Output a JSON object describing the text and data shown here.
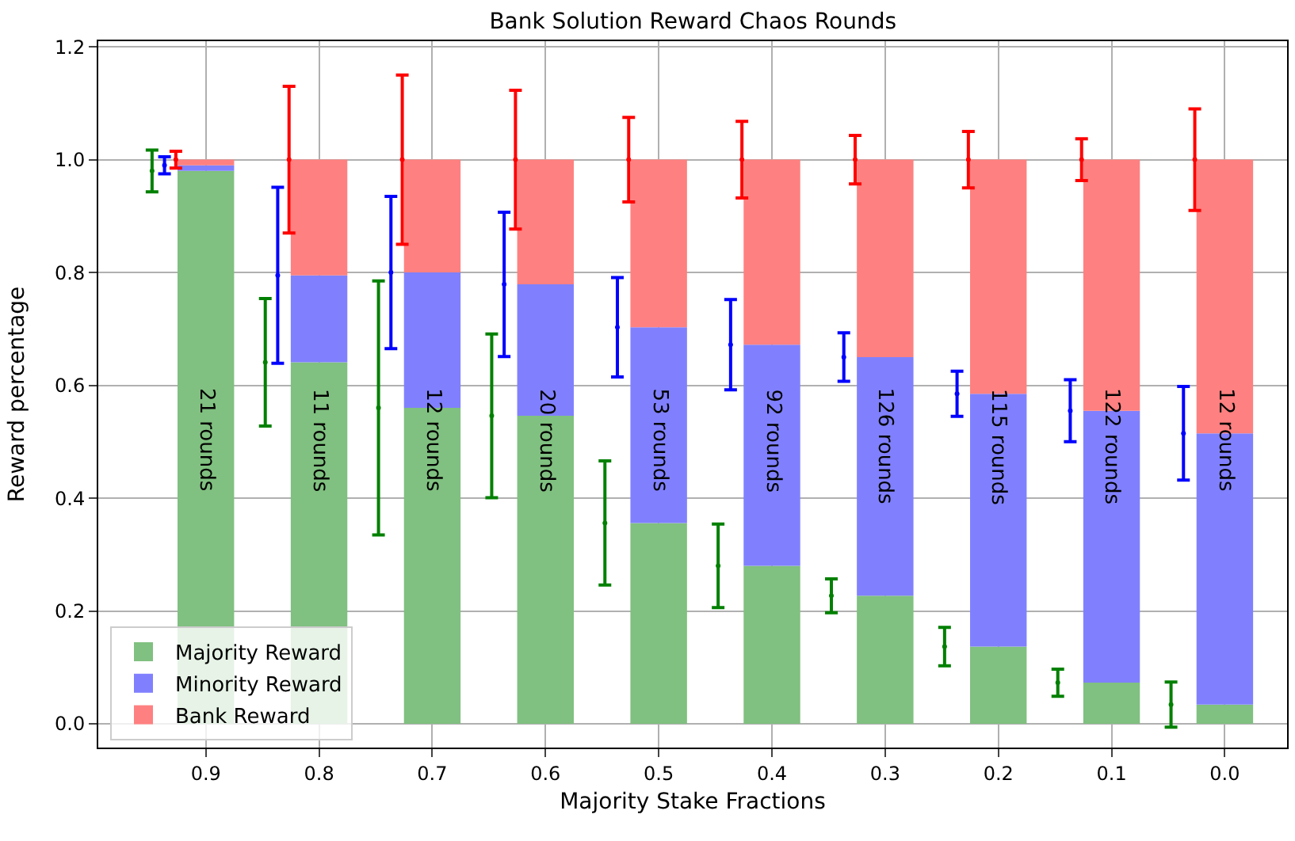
{
  "chart_data": {
    "type": "bar",
    "stacked": true,
    "title": "Bank Solution Reward Chaos Rounds",
    "xlabel": "Majority Stake Fractions",
    "ylabel": "Reward percentage",
    "x": [
      0.9,
      0.8,
      0.7,
      0.6,
      0.5,
      0.4,
      0.3,
      0.2,
      0.1,
      0.0
    ],
    "series": [
      {
        "name": "Majority Reward",
        "color": "#80c080",
        "values": [
          0.98,
          0.641,
          0.56,
          0.546,
          0.356,
          0.28,
          0.227,
          0.137,
          0.073,
          0.034
        ]
      },
      {
        "name": "Minority Reward",
        "color": "#8080ff",
        "values": [
          0.01,
          0.154,
          0.24,
          0.233,
          0.347,
          0.392,
          0.423,
          0.448,
          0.482,
          0.481
        ]
      },
      {
        "name": "Bank Reward",
        "color": "#ff8080",
        "values": [
          0.01,
          0.205,
          0.2,
          0.221,
          0.297,
          0.328,
          0.35,
          0.415,
          0.445,
          0.485
        ]
      },
      {
        "type": "scatter",
        "color": "#008000",
        "x": [
          0.9475,
          0.8475,
          0.7475,
          0.6475,
          0.5475,
          0.4475,
          0.3475,
          0.2475,
          0.1475,
          0.0475
        ],
        "values": [
          0.98,
          0.641,
          0.56,
          0.546,
          0.356,
          0.28,
          0.227,
          0.137,
          0.073,
          0.034
        ],
        "errors": [
          0.037,
          0.113,
          0.225,
          0.145,
          0.11,
          0.074,
          0.03,
          0.034,
          0.024,
          0.04
        ]
      },
      {
        "type": "scatter",
        "color": "#0000ff",
        "x": [
          0.9365,
          0.8365,
          0.7365,
          0.6365,
          0.5365,
          0.4365,
          0.3365,
          0.2365,
          0.1365,
          0.0365
        ],
        "values": [
          0.99,
          0.795,
          0.8,
          0.779,
          0.703,
          0.672,
          0.65,
          0.585,
          0.555,
          0.515
        ],
        "errors": [
          0.015,
          0.156,
          0.135,
          0.128,
          0.088,
          0.08,
          0.043,
          0.04,
          0.055,
          0.083
        ]
      },
      {
        "type": "scatter",
        "color": "#ff0000",
        "x": [
          0.9265,
          0.8265,
          0.7265,
          0.6265,
          0.5265,
          0.4265,
          0.3265,
          0.2265,
          0.1265,
          0.0265
        ],
        "values": [
          1.0,
          1.0,
          1.0,
          1.0,
          1.0,
          1.0,
          1.0,
          1.0,
          1.0,
          1.0
        ],
        "errors": [
          0.015,
          0.13,
          0.15,
          0.123,
          0.075,
          0.068,
          0.043,
          0.05,
          0.037,
          0.09
        ]
      }
    ],
    "annotations": [
      "21 rounds",
      "11 rounds",
      "12 rounds",
      "20 rounds",
      "53 rounds",
      "92 rounds",
      "126 rounds",
      "115 rounds",
      "122 rounds",
      "12 rounds"
    ],
    "xlim": [
      0.995,
      -0.055
    ],
    "xticks": [
      0.9,
      0.8,
      0.7,
      0.6,
      0.5,
      0.4,
      0.3,
      0.2,
      0.1,
      {
        "value": 0,
        "label": "0.0"
      }
    ],
    "ylim": [
      -0.042,
      1.21
    ],
    "yticks": [
      {
        "value": 0,
        "label": "0.0"
      },
      0.2,
      0.4,
      0.6,
      0.8,
      {
        "value": 1,
        "label": "1.0"
      },
      1.2
    ],
    "grid": true,
    "legend": "bottom left"
  }
}
